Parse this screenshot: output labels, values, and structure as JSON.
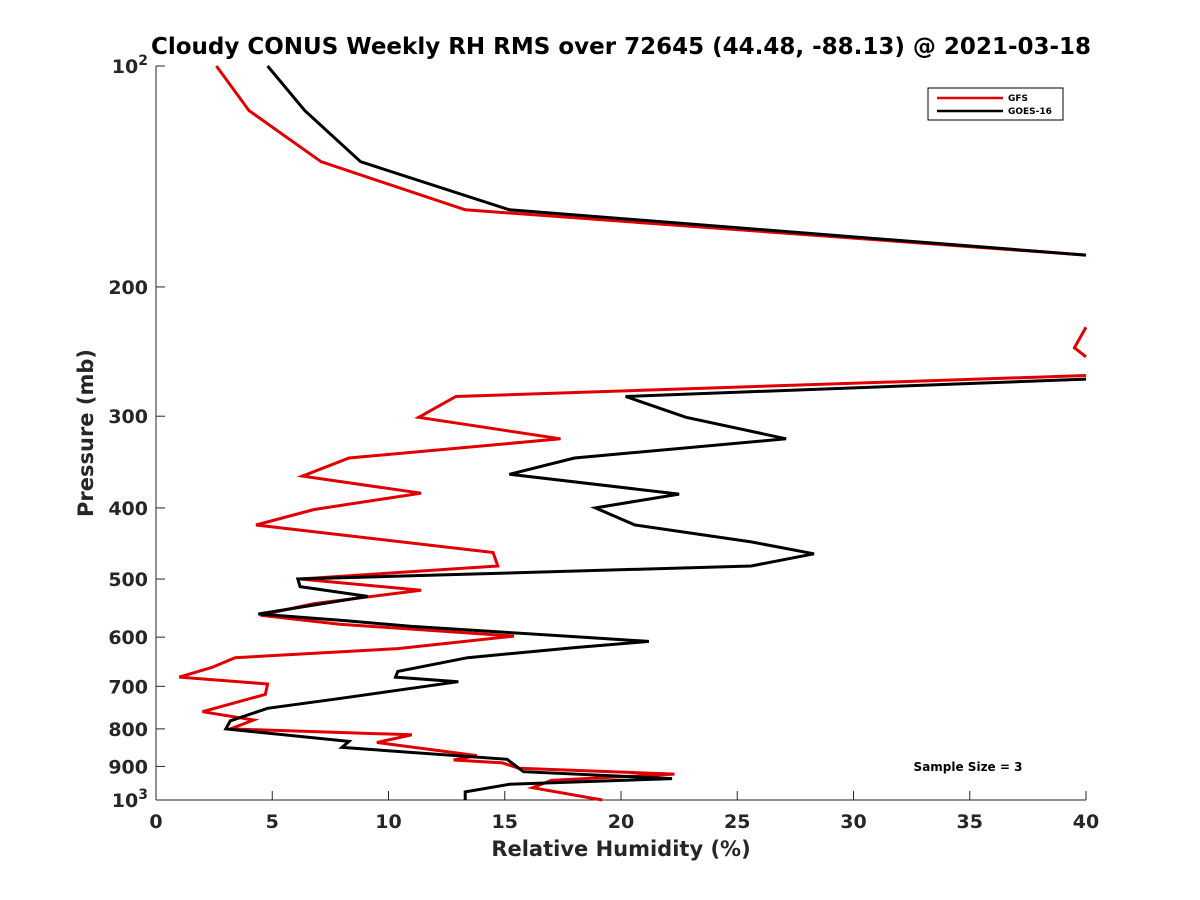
{
  "chart_data": {
    "type": "line",
    "title": "Cloudy CONUS Weekly RH RMS over 72645 (44.48, -88.13) @ 2021-03-18",
    "xlabel": "Relative Humidity (%)",
    "ylabel": "Pressure (mb)",
    "xlim": [
      0,
      40
    ],
    "ylim": [
      100,
      1000
    ],
    "y_scale": "log",
    "y_reversed": true,
    "grid": false,
    "legend_position": "top-right",
    "x_ticks": [
      "0",
      "5",
      "10",
      "15",
      "20",
      "25",
      "30",
      "35",
      "40"
    ],
    "y_ticks": [
      {
        "value": 100,
        "base": "10",
        "exp": "2"
      },
      {
        "value": 200,
        "label": "200"
      },
      {
        "value": 300,
        "label": "300"
      },
      {
        "value": 400,
        "label": "400"
      },
      {
        "value": 500,
        "label": "500"
      },
      {
        "value": 600,
        "label": "600"
      },
      {
        "value": 700,
        "label": "700"
      },
      {
        "value": 800,
        "label": "800"
      },
      {
        "value": 900,
        "label": "900"
      },
      {
        "value": 1000,
        "base": "10",
        "exp": "3"
      }
    ],
    "annotation": "Sample Size = 3",
    "series": [
      {
        "name": "GFS",
        "color": "#e00000",
        "segments": [
          [
            [
              2.6,
              100
            ],
            [
              4.0,
              115
            ],
            [
              7.1,
              135
            ],
            [
              13.3,
              157
            ],
            [
              40,
              181
            ]
          ],
          [
            [
              40,
              227
            ],
            [
              39.5,
              242
            ],
            [
              40,
              249
            ]
          ],
          [
            [
              40,
              264
            ],
            [
              12.9,
              282
            ],
            [
              11.3,
              301
            ],
            [
              17.4,
              322
            ],
            [
              8.3,
              342
            ],
            [
              6.3,
              362
            ],
            [
              11.4,
              382
            ],
            [
              6.8,
              402
            ],
            [
              4.3,
              422
            ],
            [
              14.5,
              460
            ],
            [
              14.7,
              480
            ],
            [
              6.2,
              500
            ],
            [
              11.4,
              518
            ],
            [
              6.8,
              540
            ],
            [
              4.5,
              560
            ],
            [
              7.9,
              576
            ],
            [
              15.4,
              598
            ],
            [
              10.4,
              622
            ],
            [
              3.4,
              640
            ],
            [
              2.4,
              660
            ],
            [
              1.0,
              680
            ],
            [
              4.8,
              695
            ],
            [
              4.7,
              718
            ],
            [
              2.0,
              758
            ],
            [
              4.2,
              778
            ],
            [
              3.2,
              800
            ],
            [
              11.0,
              815
            ],
            [
              9.5,
              835
            ],
            [
              13.8,
              870
            ],
            [
              12.8,
              882
            ],
            [
              14.9,
              890
            ],
            [
              15.6,
              905
            ],
            [
              22.3,
              922
            ],
            [
              17.0,
              940
            ],
            [
              16.2,
              962
            ],
            [
              19.2,
              1000
            ]
          ]
        ]
      },
      {
        "name": "GOES-16",
        "color": "#000000",
        "segments": [
          [
            [
              4.8,
              100
            ],
            [
              6.4,
              115
            ],
            [
              8.8,
              135
            ],
            [
              15.2,
              157
            ],
            [
              40,
              181
            ]
          ],
          [
            [
              40,
              267
            ],
            [
              20.2,
              282
            ],
            [
              22.8,
              301
            ],
            [
              27.1,
              322
            ],
            [
              18.0,
              342
            ],
            [
              15.2,
              360
            ],
            [
              22.5,
              383
            ],
            [
              18.9,
              400
            ],
            [
              20.6,
              422
            ],
            [
              25.6,
              445
            ],
            [
              28.3,
              462
            ],
            [
              25.6,
              480
            ],
            [
              6.1,
              500
            ],
            [
              6.2,
              512
            ],
            [
              9.1,
              528
            ],
            [
              4.4,
              558
            ],
            [
              8.2,
              570
            ],
            [
              11.0,
              580
            ],
            [
              18.4,
              600
            ],
            [
              21.2,
              608
            ],
            [
              18.0,
              620
            ],
            [
              13.4,
              640
            ],
            [
              10.4,
              668
            ],
            [
              10.3,
              680
            ],
            [
              13.0,
              690
            ],
            [
              7.8,
              728
            ],
            [
              4.8,
              750
            ],
            [
              3.2,
              780
            ],
            [
              3.0,
              800
            ],
            [
              8.3,
              832
            ],
            [
              8.0,
              848
            ],
            [
              15.1,
              880
            ],
            [
              15.4,
              895
            ],
            [
              15.8,
              915
            ],
            [
              22.2,
              935
            ],
            [
              15.2,
              952
            ],
            [
              13.3,
              975
            ],
            [
              13.3,
              1000
            ]
          ]
        ]
      }
    ]
  }
}
